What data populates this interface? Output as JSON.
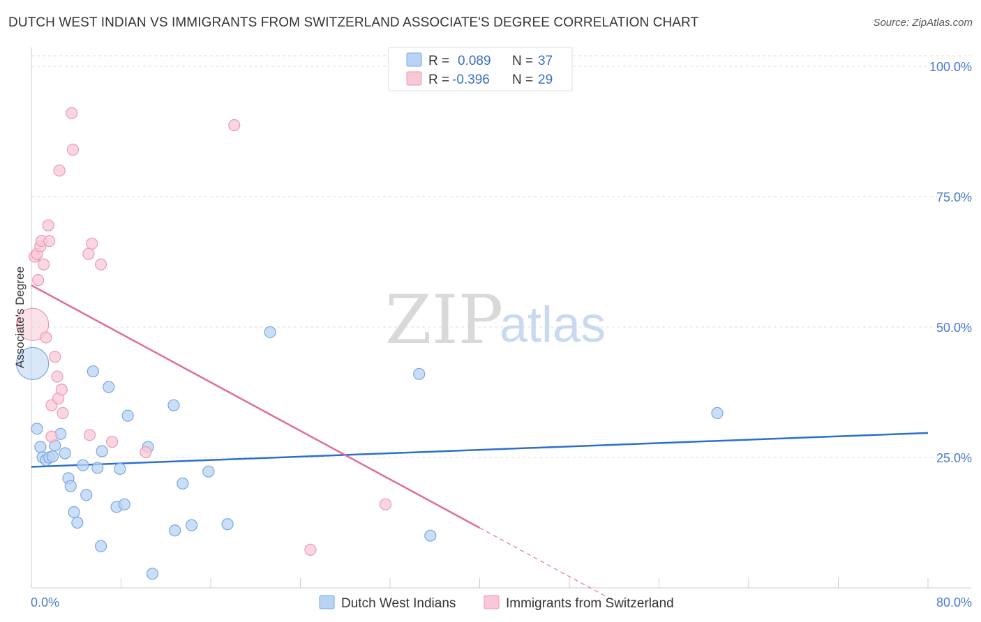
{
  "title": "DUTCH WEST INDIAN VS IMMIGRANTS FROM SWITZERLAND ASSOCIATE'S DEGREE CORRELATION CHART",
  "source": "Source: ZipAtlas.com",
  "watermark": {
    "zip": "ZIP",
    "atlas": "atlas"
  },
  "colors": {
    "blue_fill": "#b9d3f4",
    "blue_stroke": "#7aa7e0",
    "blue_line": "#2b6fcf",
    "pink_fill": "#f8c8d6",
    "pink_stroke": "#ec9ab4",
    "pink_line": "#e06e98",
    "grid": "#dddddd",
    "tick_label": "#4a7cc9"
  },
  "legend": {
    "rows": [
      {
        "r_label": "R =",
        "r_value": "0.089",
        "n_label": "N =",
        "n_value": "37",
        "color": "#b9d3f4"
      },
      {
        "r_label": "R =",
        "r_value": "-0.396",
        "n_label": "N =",
        "n_value": "29",
        "color": "#f8c8d6"
      }
    ]
  },
  "chart_data": {
    "type": "scatter",
    "title": "DUTCH WEST INDIAN VS IMMIGRANTS FROM SWITZERLAND ASSOCIATE'S DEGREE CORRELATION CHART",
    "xlabel": "",
    "ylabel": "Associate's Degree",
    "xlim": [
      0,
      80
    ],
    "ylim": [
      0,
      102
    ],
    "x_tick_labels": [
      "0.0%",
      "80.0%"
    ],
    "y_ticks": [
      25,
      50,
      75,
      100
    ],
    "y_tick_labels": [
      "25.0%",
      "50.0%",
      "75.0%",
      "100.0%"
    ],
    "grid": "horizontal dashed",
    "legend_position": "bottom",
    "series": [
      {
        "name": "Dutch West Indians",
        "color": "#b9d3f4",
        "points": [
          {
            "x": 0.1,
            "y": 43,
            "big": true
          },
          {
            "x": 0.5,
            "y": 30.5
          },
          {
            "x": 0.8,
            "y": 27
          },
          {
            "x": 1.0,
            "y": 25
          },
          {
            "x": 1.3,
            "y": 24.5
          },
          {
            "x": 1.6,
            "y": 25
          },
          {
            "x": 1.9,
            "y": 25.2
          },
          {
            "x": 2.1,
            "y": 27.3
          },
          {
            "x": 2.6,
            "y": 29.5
          },
          {
            "x": 3.0,
            "y": 25.8
          },
          {
            "x": 3.3,
            "y": 21
          },
          {
            "x": 3.5,
            "y": 19.5
          },
          {
            "x": 3.8,
            "y": 14.5
          },
          {
            "x": 4.1,
            "y": 12.5
          },
          {
            "x": 4.6,
            "y": 23.5
          },
          {
            "x": 4.9,
            "y": 17.8
          },
          {
            "x": 5.5,
            "y": 41.5
          },
          {
            "x": 5.9,
            "y": 23
          },
          {
            "x": 6.2,
            "y": 8
          },
          {
            "x": 6.3,
            "y": 26.2
          },
          {
            "x": 6.9,
            "y": 38.5
          },
          {
            "x": 7.6,
            "y": 15.5
          },
          {
            "x": 7.9,
            "y": 22.8
          },
          {
            "x": 8.3,
            "y": 16
          },
          {
            "x": 8.6,
            "y": 33
          },
          {
            "x": 10.4,
            "y": 27
          },
          {
            "x": 10.8,
            "y": 2.7
          },
          {
            "x": 12.7,
            "y": 35
          },
          {
            "x": 12.8,
            "y": 11
          },
          {
            "x": 13.5,
            "y": 20
          },
          {
            "x": 14.3,
            "y": 12
          },
          {
            "x": 15.8,
            "y": 22.3
          },
          {
            "x": 17.5,
            "y": 12.2
          },
          {
            "x": 21.3,
            "y": 49
          },
          {
            "x": 34.6,
            "y": 41
          },
          {
            "x": 35.6,
            "y": 10
          },
          {
            "x": 61.2,
            "y": 33.5
          }
        ],
        "trend": {
          "x1": 0,
          "y1": 23.2,
          "x2": 80,
          "y2": 29.7
        }
      },
      {
        "name": "Immigrants from Switzerland",
        "color": "#f8c8d6",
        "points": [
          {
            "x": 0.1,
            "y": 50.5,
            "big": true
          },
          {
            "x": 0.3,
            "y": 63.5
          },
          {
            "x": 0.5,
            "y": 64
          },
          {
            "x": 0.6,
            "y": 59
          },
          {
            "x": 0.8,
            "y": 65.5
          },
          {
            "x": 0.9,
            "y": 66.5
          },
          {
            "x": 1.1,
            "y": 62
          },
          {
            "x": 1.3,
            "y": 48
          },
          {
            "x": 1.5,
            "y": 69.5
          },
          {
            "x": 1.6,
            "y": 66.5
          },
          {
            "x": 1.8,
            "y": 29
          },
          {
            "x": 1.8,
            "y": 35
          },
          {
            "x": 2.1,
            "y": 44.3
          },
          {
            "x": 2.3,
            "y": 40.5
          },
          {
            "x": 2.4,
            "y": 36.3
          },
          {
            "x": 2.5,
            "y": 80
          },
          {
            "x": 2.7,
            "y": 38
          },
          {
            "x": 2.8,
            "y": 33.5
          },
          {
            "x": 3.6,
            "y": 91
          },
          {
            "x": 3.7,
            "y": 84
          },
          {
            "x": 5.1,
            "y": 64
          },
          {
            "x": 5.2,
            "y": 29.3
          },
          {
            "x": 5.4,
            "y": 66
          },
          {
            "x": 6.2,
            "y": 62
          },
          {
            "x": 7.2,
            "y": 28
          },
          {
            "x": 10.2,
            "y": 26
          },
          {
            "x": 18.1,
            "y": 88.7
          },
          {
            "x": 24.9,
            "y": 7.3
          },
          {
            "x": 31.6,
            "y": 16
          }
        ],
        "trend": {
          "x1": 0,
          "y1": 58,
          "x2": 40,
          "y2": 11.5,
          "dash_x2": 52,
          "dash_y2": -2.5
        }
      }
    ]
  }
}
